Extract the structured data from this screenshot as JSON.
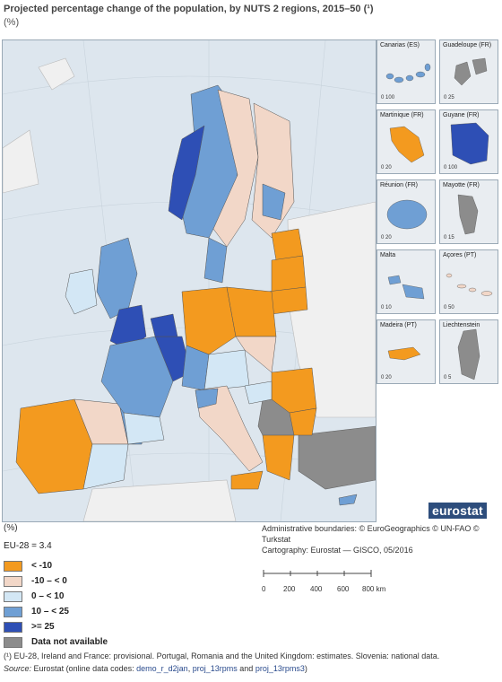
{
  "title": "Projected percentage change of the population, by NUTS 2 regions, 2015–50 (¹)",
  "subtitle": "(%)",
  "colors": {
    "lt_minus10": "#f39a1f",
    "minus10_0": "#f2d7c8",
    "zero_10": "#d3e7f5",
    "ten_25": "#6f9fd4",
    "ge25": "#2e4fb5",
    "na": "#8c8c8c",
    "sea": "#dde6ee",
    "nonEU": "#f0f0f0"
  },
  "insets": [
    {
      "name": "Canarias (ES)",
      "scale": [
        "0",
        "100"
      ]
    },
    {
      "name": "Guadeloupe (FR)",
      "scale": [
        "0",
        "25"
      ]
    },
    {
      "name": "Martinique (FR)",
      "scale": [
        "0",
        "20"
      ]
    },
    {
      "name": "Guyane (FR)",
      "scale": [
        "0",
        "100"
      ]
    },
    {
      "name": "Réunion (FR)",
      "scale": [
        "0",
        "20"
      ]
    },
    {
      "name": "Mayotte (FR)",
      "scale": [
        "0",
        "15"
      ]
    },
    {
      "name": "Malta",
      "scale": [
        "0",
        "10"
      ]
    },
    {
      "name": "Açores (PT)",
      "scale": [
        "0",
        "50"
      ]
    },
    {
      "name": "Madeira (PT)",
      "scale": [
        "0",
        "20"
      ]
    },
    {
      "name": "Liechtenstein",
      "scale": [
        "0",
        "5"
      ]
    }
  ],
  "logo": "eurostat",
  "legend": {
    "unit": "(%)",
    "eu_value": "EU-28 = 3.4",
    "items": [
      {
        "label": "< -10",
        "color": "#f39a1f"
      },
      {
        "label": "-10 – < 0",
        "color": "#f2d7c8"
      },
      {
        "label": "0 – < 10",
        "color": "#d3e7f5"
      },
      {
        "label": "10 – < 25",
        "color": "#6f9fd4"
      },
      {
        "label": ">= 25",
        "color": "#2e4fb5"
      },
      {
        "label": "Data not available",
        "color": "#8c8c8c"
      }
    ]
  },
  "credits": {
    "line1": "Administrative boundaries: © EuroGeographics © UN-FAO © Turkstat",
    "line2": "Cartography: Eurostat — GISCO, 05/2016"
  },
  "scalebar": {
    "labels": [
      "0",
      "200",
      "400",
      "600",
      "800 km"
    ]
  },
  "footnote": "(¹) EU-28, Ireland and France: provisional. Portugal, Romania and the United Kingdom: estimates. Slovenia: national data.",
  "source": {
    "label": "Source:",
    "text": "Eurostat (online data codes:",
    "code1": "demo_r_d2jan",
    "sep1": ",",
    "code2": "proj_13rpms",
    "and": "and",
    "code3": "proj_13rpms3",
    "end": ")"
  }
}
